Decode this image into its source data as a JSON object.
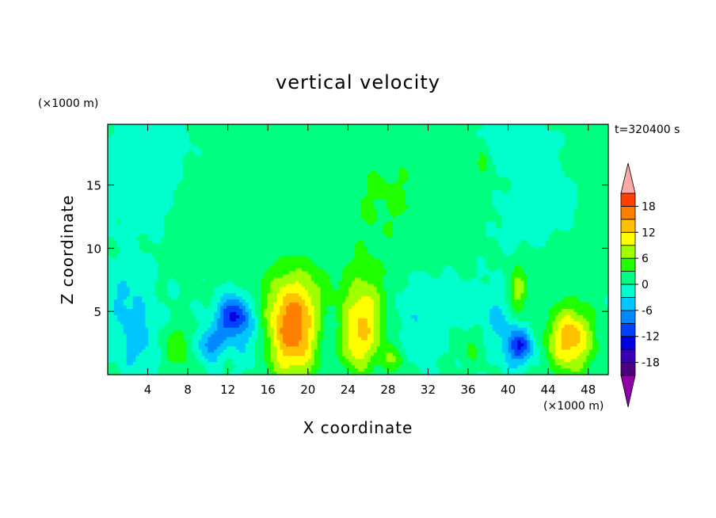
{
  "chart_data": {
    "type": "heatmap",
    "title": "vertical velocity",
    "xlabel": "X coordinate",
    "ylabel": "Z coordinate",
    "x_unit": "(×1000 m)",
    "y_unit": "(×1000 m)",
    "time_label": "t=320400 s",
    "xlim": [
      0,
      50
    ],
    "ylim": [
      0,
      19.8
    ],
    "x_ticks": [
      4,
      8,
      12,
      16,
      20,
      24,
      28,
      32,
      36,
      40,
      44,
      48
    ],
    "y_ticks": [
      5,
      10,
      15
    ],
    "colorbar": {
      "levels": [
        -21,
        -18,
        -15,
        -12,
        -9,
        -6,
        -3,
        0,
        3,
        6,
        9,
        12,
        15,
        18,
        21
      ],
      "labels": [
        18,
        12,
        6,
        0,
        -6,
        -12,
        -18
      ],
      "colors": [
        "#4b0080",
        "#3800b0",
        "#0000e0",
        "#0040ff",
        "#0088ff",
        "#00c8ff",
        "#00ffcc",
        "#00ff80",
        "#20ff00",
        "#a0ff00",
        "#ffff00",
        "#ffc000",
        "#ff8000",
        "#ff4000",
        "#ff0000"
      ],
      "under_color": "#9000a8",
      "over_color": "#ffa8a8"
    },
    "background_value": 0.2,
    "features": [
      {
        "x": 18.5,
        "z": 3.3,
        "sx": 2.0,
        "sz": 2.6,
        "value": 16
      },
      {
        "x": 18.8,
        "z": 6.5,
        "sx": 2.4,
        "sz": 2.0,
        "value": 4
      },
      {
        "x": 25.6,
        "z": 4.5,
        "sx": 1.6,
        "sz": 2.4,
        "value": 11
      },
      {
        "x": 24.6,
        "z": 2.0,
        "sx": 1.3,
        "sz": 1.5,
        "value": 5
      },
      {
        "x": 46.2,
        "z": 2.8,
        "sx": 1.6,
        "sz": 1.8,
        "value": 14
      },
      {
        "x": 41.0,
        "z": 6.5,
        "sx": 0.7,
        "sz": 1.4,
        "value": 8
      },
      {
        "x": 28.5,
        "z": 1.2,
        "sx": 0.9,
        "sz": 0.8,
        "value": 5
      },
      {
        "x": 36.5,
        "z": 2.3,
        "sx": 1.4,
        "sz": 1.3,
        "value": 4
      },
      {
        "x": 7.0,
        "z": 2.2,
        "sx": 1.5,
        "sz": 1.3,
        "value": 5
      },
      {
        "x": 37.5,
        "z": 17.0,
        "sx": 0.5,
        "sz": 0.9,
        "value": 4
      },
      {
        "x": 12.5,
        "z": 4.6,
        "sx": 1.1,
        "sz": 1.1,
        "value": -13
      },
      {
        "x": 10.2,
        "z": 2.4,
        "sx": 1.2,
        "sz": 0.9,
        "value": -8
      },
      {
        "x": 3.0,
        "z": 3.0,
        "sx": 1.6,
        "sz": 1.8,
        "value": -5
      },
      {
        "x": 41.2,
        "z": 2.2,
        "sx": 0.9,
        "sz": 0.9,
        "value": -11
      },
      {
        "x": 39.0,
        "z": 3.8,
        "sx": 1.8,
        "sz": 2.0,
        "value": -4
      },
      {
        "x": 22.0,
        "z": 3.0,
        "sx": 1.1,
        "sz": 2.0,
        "value": -4
      },
      {
        "x": 31.5,
        "z": 5.0,
        "sx": 2.8,
        "sz": 2.5,
        "value": -3
      },
      {
        "x": 14.5,
        "z": 3.0,
        "sx": 1.2,
        "sz": 1.8,
        "value": -4
      },
      {
        "x": 1.5,
        "z": 6.5,
        "sx": 1.5,
        "sz": 1.5,
        "value": -3
      },
      {
        "x": 40.0,
        "z": 18.2,
        "sx": 2.0,
        "sz": 1.2,
        "value": -3
      },
      {
        "x": 28.0,
        "z": 14.0,
        "sx": 6.0,
        "sz": 4.5,
        "value": 3
      },
      {
        "x": 10.0,
        "z": 12.0,
        "sx": 3.0,
        "sz": 2.5,
        "value": 2
      },
      {
        "x": 46.0,
        "z": 9.5,
        "sx": 3.5,
        "sz": 1.6,
        "value": 2
      },
      {
        "x": 42.5,
        "z": 12.0,
        "sx": 3.0,
        "sz": 2.5,
        "value": -2
      },
      {
        "x": 4.0,
        "z": 15.5,
        "sx": 2.5,
        "sz": 3.0,
        "value": -2
      },
      {
        "x": 49.0,
        "z": 15.0,
        "sx": 1.2,
        "sz": 4.0,
        "value": 2
      }
    ]
  }
}
